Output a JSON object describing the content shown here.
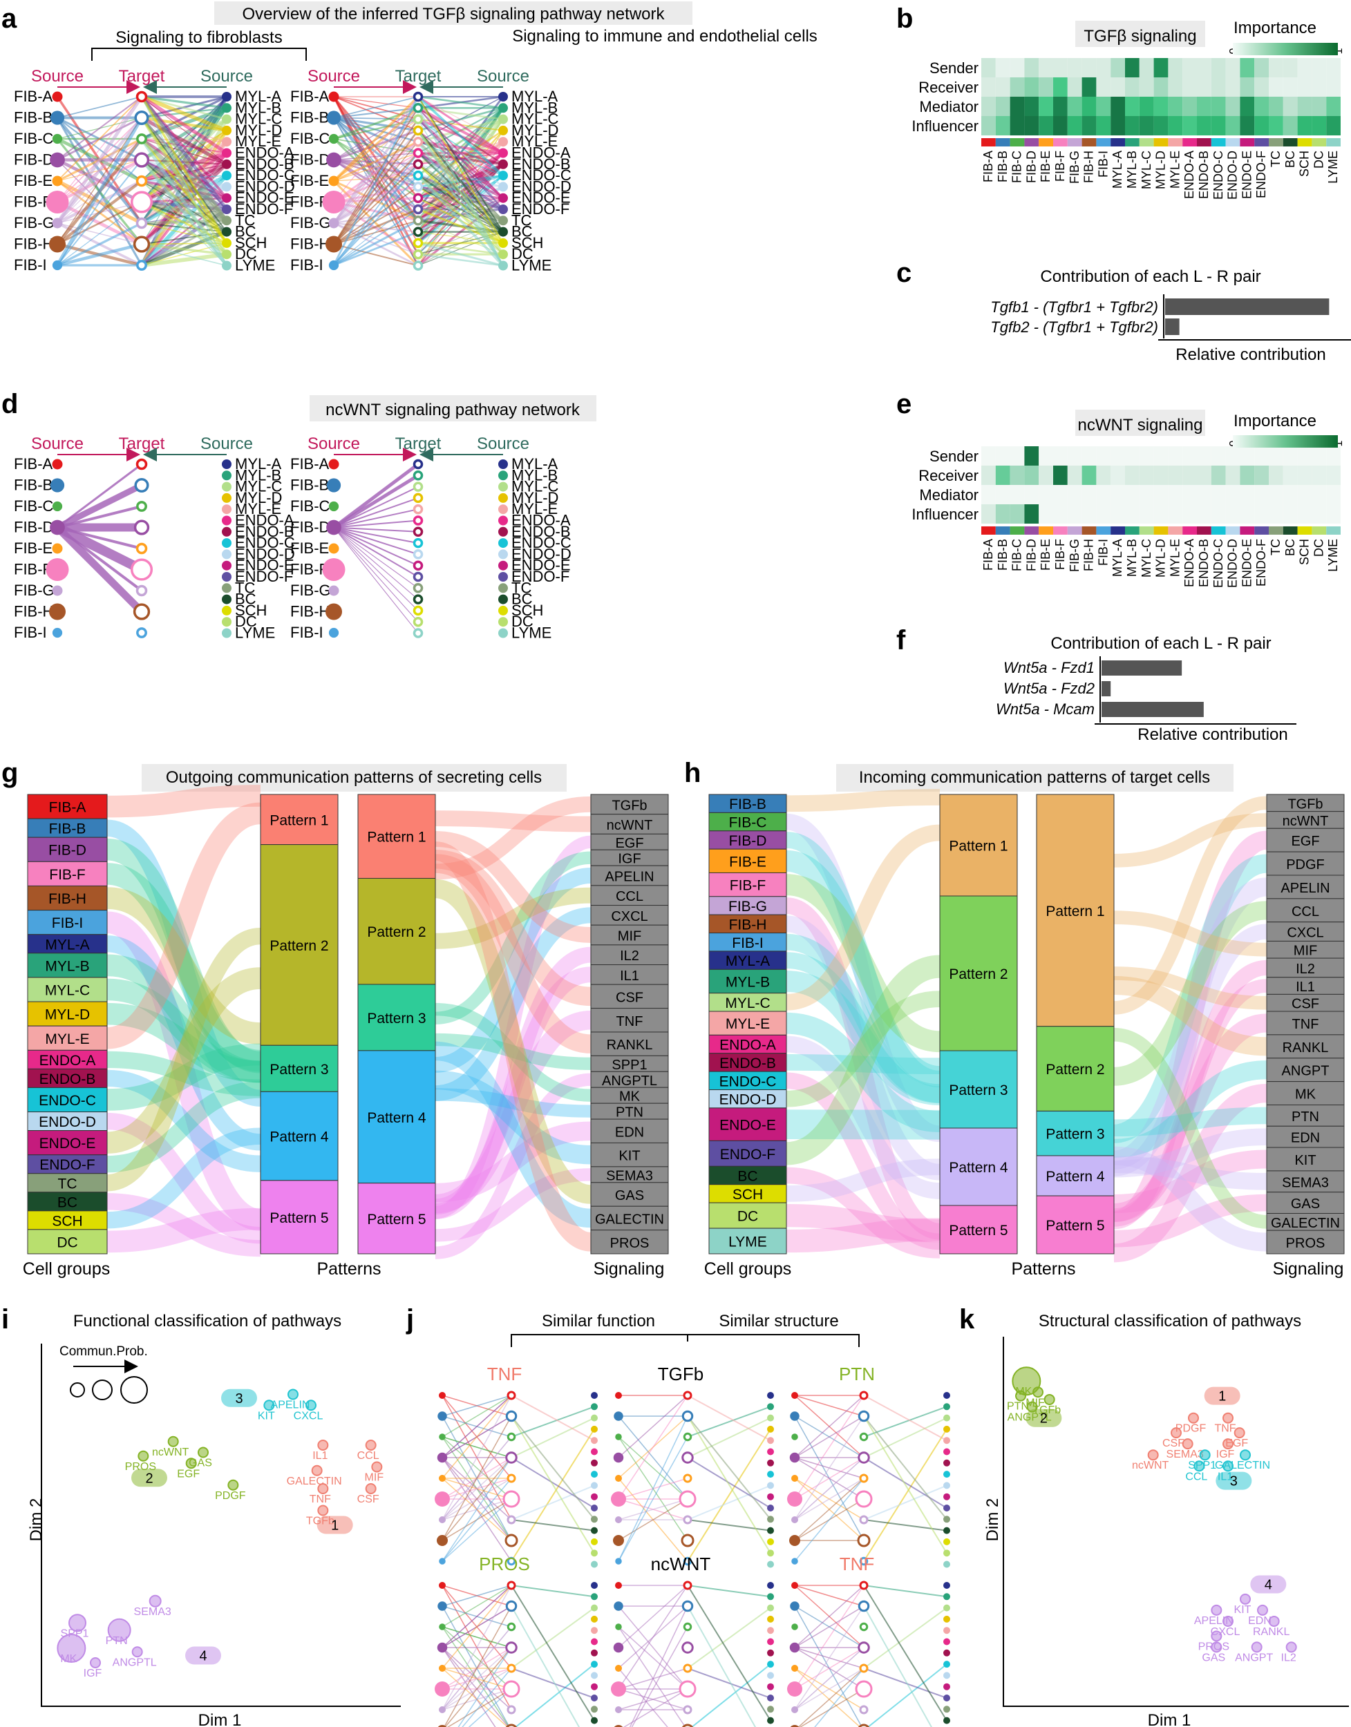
{
  "panels": {
    "a": {
      "letter": "a",
      "header": "Overview of the inferred TGFβ signaling pathway network",
      "left_title": "Signaling to fibroblasts",
      "right_title": "Signaling to immune and endothelial cells"
    },
    "b": {
      "letter": "b",
      "title": "TGFβ signaling",
      "legend": "Importance",
      "legend_min": "0",
      "legend_max": "1"
    },
    "c": {
      "letter": "c",
      "title": "Contribution of each L - R pair",
      "xlabel": "Relative contribution"
    },
    "d": {
      "letter": "d",
      "header": "ncWNT signaling pathway network"
    },
    "e": {
      "letter": "e",
      "title": "ncWNT signaling",
      "legend": "Importance",
      "legend_min": "0",
      "legend_max": "1"
    },
    "f": {
      "letter": "f",
      "title": "Contribution of each L - R pair",
      "xlabel": "Relative contribution"
    },
    "g": {
      "letter": "g",
      "header": "Outgoing communication patterns of secreting cells"
    },
    "h": {
      "letter": "h",
      "header": "Incoming communication patterns of target cells"
    },
    "i": {
      "letter": "i",
      "title": "Functional classification of pathways",
      "xlabel": "Dim 1",
      "ylabel": "Dim 2",
      "legend": "Commun.Prob."
    },
    "j": {
      "letter": "j",
      "similar_function": "Similar function",
      "similar_structure": "Similar structure",
      "titles": [
        "TNF",
        "TGFb",
        "PTN",
        "PROS",
        "ncWNT",
        "TNF"
      ]
    },
    "k": {
      "letter": "k",
      "title": "Structural classification of pathways",
      "xlabel": "Dim 1",
      "ylabel": "Dim 2"
    }
  },
  "hier": {
    "source": "Source",
    "target": "Target"
  },
  "sankey": {
    "cell_groups": "Cell groups",
    "patterns": "Patterns",
    "signaling": "Signaling"
  },
  "roles": [
    "Sender",
    "Receiver",
    "Mediator",
    "Influencer"
  ],
  "fibroblasts": [
    "FIB-A",
    "FIB-B",
    "FIB-C",
    "FIB-D",
    "FIB-E",
    "FIB-F",
    "FIB-G",
    "FIB-H",
    "FIB-I"
  ],
  "others": [
    "MYL-A",
    "MYL-B",
    "MYL-C",
    "MYL-D",
    "MYL-E",
    "ENDO-A",
    "ENDO-B",
    "ENDO-C",
    "ENDO-D",
    "ENDO-E",
    "ENDO-F",
    "TC",
    "BC",
    "SCH",
    "DC",
    "LYME"
  ],
  "cell_colors": {
    "FIB-A": "#e41a1c",
    "FIB-B": "#377eb8",
    "FIB-C": "#4daf4a",
    "FIB-D": "#984ea3",
    "FIB-E": "#ff9f1c",
    "FIB-F": "#f781bf",
    "FIB-G": "#c4a5d6",
    "FIB-H": "#a65628",
    "FIB-I": "#4ba3dd",
    "MYL-A": "#27318b",
    "MYL-B": "#29a37a",
    "MYL-C": "#b2df8a",
    "MYL-D": "#e6c200",
    "MYL-E": "#f4a6a6",
    "ENDO-A": "#e7298a",
    "ENDO-B": "#a1124f",
    "ENDO-C": "#17c3d6",
    "ENDO-D": "#b9d8ef",
    "ENDO-E": "#c51b7d",
    "ENDO-F": "#5e4fa2",
    "TC": "#88a07a",
    "BC": "#1b4d2c",
    "SCH": "#dddd00",
    "DC": "#b8df6e",
    "LYME": "#8dd3c7"
  },
  "fib_sizes": [
    1,
    1.35,
    0.95,
    1.45,
    1.0,
    2.2,
    1.0,
    1.6,
    0.95
  ],
  "heat_columns": [
    "FIB-A",
    "FIB-B",
    "FIB-C",
    "FIB-D",
    "FIB-E",
    "FIB-F",
    "FIB-G",
    "FIB-H",
    "FIB-I",
    "MYL-A",
    "MYL-B",
    "MYL-C",
    "MYL-D",
    "MYL-E",
    "ENDO-A",
    "ENDO-B",
    "ENDO-C",
    "ENDO-D",
    "ENDO-E",
    "ENDO-F",
    "TC",
    "BC",
    "SCH",
    "DC",
    "LYME"
  ],
  "heat_tgfb": [
    [
      0.15,
      0.05,
      0.05,
      0.2,
      0.1,
      0.1,
      0.1,
      0.1,
      0.1,
      0.25,
      0.9,
      0.15,
      0.85,
      0.15,
      0.1,
      0.1,
      0.15,
      0.1,
      0.5,
      0.25,
      0.1,
      0.1,
      0.05,
      0.05,
      0.05
    ],
    [
      0.1,
      0.1,
      0.3,
      0.4,
      0.3,
      0.6,
      0.15,
      0.9,
      0.1,
      0.1,
      0.2,
      0.15,
      0.3,
      0.15,
      0.1,
      0.1,
      0.15,
      0.1,
      0.3,
      0.15,
      0.05,
      0.05,
      0.05,
      0.05,
      0.05
    ],
    [
      0.2,
      0.3,
      0.95,
      0.9,
      0.6,
      0.9,
      0.5,
      0.7,
      0.5,
      0.95,
      0.6,
      0.7,
      0.6,
      0.5,
      0.4,
      0.5,
      0.5,
      0.3,
      0.85,
      0.5,
      0.4,
      0.2,
      0.3,
      0.3,
      0.5
    ],
    [
      0.3,
      0.5,
      0.95,
      0.95,
      0.8,
      0.95,
      0.7,
      0.85,
      0.7,
      0.95,
      0.8,
      0.85,
      0.8,
      0.7,
      0.6,
      0.7,
      0.7,
      0.5,
      0.9,
      0.7,
      0.6,
      0.4,
      0.7,
      0.7,
      0.8
    ]
  ],
  "heat_ncwnt": [
    [
      0,
      0,
      0,
      0.95,
      0,
      0,
      0,
      0,
      0,
      0,
      0,
      0,
      0,
      0,
      0,
      0,
      0,
      0,
      0,
      0,
      0,
      0,
      0,
      0,
      0
    ],
    [
      0.1,
      0.5,
      0.3,
      0.35,
      0.1,
      0.95,
      0.1,
      0.5,
      0.1,
      0.05,
      0.1,
      0.1,
      0.1,
      0.1,
      0.1,
      0.1,
      0.25,
      0.1,
      0.3,
      0.25,
      0.1,
      0.05,
      0.05,
      0.05,
      0.05
    ],
    [
      0,
      0,
      0,
      0,
      0,
      0,
      0,
      0,
      0,
      0,
      0,
      0,
      0,
      0,
      0,
      0,
      0,
      0,
      0,
      0,
      0,
      0,
      0,
      0,
      0
    ],
    [
      0.1,
      0.3,
      0.3,
      0.95,
      0,
      0,
      0,
      0,
      0,
      0,
      0,
      0,
      0,
      0,
      0,
      0,
      0,
      0,
      0,
      0,
      0,
      0,
      0,
      0,
      0
    ]
  ],
  "lr_tgfb": [
    {
      "label": "Tgfb1 - (Tgfbr1 + Tgfbr2)",
      "value": 0.92
    },
    {
      "label": "Tgfb2 - (Tgfbr1 + Tgfbr2)",
      "value": 0.08
    }
  ],
  "lr_ncwnt": [
    {
      "label": "Wnt5a - Fzd1",
      "value": 0.44
    },
    {
      "label": "Wnt5a - Fzd2",
      "value": 0.05
    },
    {
      "label": "Wnt5a - Mcam",
      "value": 0.56
    }
  ],
  "pattern_labels": [
    "Pattern 1",
    "Pattern 2",
    "Pattern 3",
    "Pattern 4",
    "Pattern 5"
  ],
  "out_cells": [
    "FIB-A",
    "FIB-B",
    "FIB-D",
    "FIB-F",
    "FIB-H",
    "FIB-I",
    "MYL-A",
    "MYL-B",
    "MYL-C",
    "MYL-D",
    "MYL-E",
    "ENDO-A",
    "ENDO-B",
    "ENDO-C",
    "ENDO-D",
    "ENDO-E",
    "ENDO-F",
    "TC",
    "BC",
    "SCH",
    "DC"
  ],
  "out_cell_weights": [
    1.3,
    1,
    1.3,
    1.3,
    1.3,
    1.3,
    1,
    1.3,
    1.3,
    1.3,
    1.3,
    1,
    1,
    1.3,
    1,
    1.3,
    1,
    1,
    1,
    1,
    1.3
  ],
  "out_patterns": [
    1.3,
    5.2,
    1.2,
    2.3,
    1.9
  ],
  "out_patterns_right": [
    1.9,
    2.4,
    1.5,
    3.0,
    1.6
  ],
  "out_pattern_colors": [
    "#fa8072",
    "#b5b62a",
    "#2ecc98",
    "#33b7f0",
    "#ee82ee"
  ],
  "in_cells": [
    "FIB-B",
    "FIB-C",
    "FIB-D",
    "FIB-E",
    "FIB-F",
    "FIB-G",
    "FIB-H",
    "FIB-I",
    "MYL-A",
    "MYL-B",
    "MYL-C",
    "MYL-E",
    "ENDO-A",
    "ENDO-B",
    "ENDO-C",
    "ENDO-D",
    "ENDO-E",
    "ENDO-F",
    "BC",
    "SCH",
    "DC",
    "LYME"
  ],
  "in_cell_weights": [
    1,
    1,
    1,
    1.3,
    1.3,
    1,
    1,
    1,
    1,
    1.3,
    1,
    1.3,
    1,
    1,
    1,
    1,
    1.8,
    1.4,
    1,
    1,
    1.4,
    1.4
  ],
  "in_patterns": [
    2.1,
    3.2,
    1.6,
    1.6,
    1.0
  ],
  "in_patterns_right": [
    5.2,
    1.9,
    1.0,
    0.9,
    1.3
  ],
  "in_pattern_colors": [
    "#eab266",
    "#7fd15b",
    "#45d3d6",
    "#c8b7f7",
    "#f77ed0"
  ],
  "signals_out": [
    "TGFb",
    "ncWNT",
    "EGF",
    "IGF",
    "APELIN",
    "CCL",
    "CXCL",
    "MIF",
    "IL2",
    "IL1",
    "CSF",
    "TNF",
    "RANKL",
    "SPP1",
    "ANGPTL",
    "MK",
    "PTN",
    "EDN",
    "KIT",
    "SEMA3",
    "GAS",
    "GALECTIN",
    "PROS"
  ],
  "signals_out_weights": [
    1,
    1,
    0.8,
    0.8,
    1,
    1,
    1,
    1,
    1,
    1,
    1.2,
    1.2,
    1.2,
    0.8,
    0.8,
    0.8,
    0.8,
    1.2,
    1.2,
    0.8,
    1.2,
    1.2,
    1.2
  ],
  "signals_in": [
    "TGFb",
    "ncWNT",
    "EGF",
    "PDGF",
    "APELIN",
    "CCL",
    "CXCL",
    "MIF",
    "IL2",
    "IL1",
    "CSF",
    "TNF",
    "RANKL",
    "ANGPT",
    "MK",
    "PTN",
    "EDN",
    "KIT",
    "SEMA3",
    "GAS",
    "GALECTIN",
    "PROS"
  ],
  "signals_in_weights": [
    0.8,
    0.8,
    1.1,
    1.1,
    1.1,
    1.1,
    0.9,
    0.8,
    0.9,
    0.8,
    0.8,
    1.1,
    1.1,
    1.1,
    1.1,
    1.0,
    1.0,
    1.1,
    1.0,
    1.0,
    0.8,
    1.1
  ],
  "scatter_i": [
    {
      "label": "APELIN",
      "g": 3,
      "x": 4.2,
      "y": 8.6
    },
    {
      "label": "KIT",
      "g": 3,
      "x": 3.8,
      "y": 8.3
    },
    {
      "label": "CXCL",
      "g": 3,
      "x": 4.5,
      "y": 8.3
    },
    {
      "label": "ncWNT",
      "g": 2,
      "x": 2.2,
      "y": 7.3
    },
    {
      "label": "PROS",
      "g": 2,
      "x": 1.7,
      "y": 6.9
    },
    {
      "label": "GAS",
      "g": 2,
      "x": 2.7,
      "y": 7.0
    },
    {
      "label": "EGF",
      "g": 2,
      "x": 2.5,
      "y": 6.7
    },
    {
      "label": "PDGF",
      "g": 2,
      "x": 3.2,
      "y": 6.1
    },
    {
      "label": "IL1",
      "g": 1,
      "x": 4.7,
      "y": 7.2
    },
    {
      "label": "CCL",
      "g": 1,
      "x": 5.5,
      "y": 7.2
    },
    {
      "label": "GALECTIN",
      "g": 1,
      "x": 4.6,
      "y": 6.5
    },
    {
      "label": "MIF",
      "g": 1,
      "x": 5.6,
      "y": 6.6
    },
    {
      "label": "TNF",
      "g": 1,
      "x": 4.7,
      "y": 6.0
    },
    {
      "label": "CSF",
      "g": 1,
      "x": 5.5,
      "y": 6.0
    },
    {
      "label": "TGFb",
      "g": 1,
      "x": 4.7,
      "y": 5.4
    },
    {
      "label": "SEMA3",
      "g": 4,
      "x": 1.9,
      "y": 2.9
    },
    {
      "label": "SPP1",
      "g": 4,
      "x": 0.6,
      "y": 2.3
    },
    {
      "label": "PTN",
      "g": 4,
      "x": 1.3,
      "y": 2.1
    },
    {
      "label": "MK",
      "g": 4,
      "x": 0.5,
      "y": 1.6
    },
    {
      "label": "ANGPTL",
      "g": 4,
      "x": 1.6,
      "y": 1.5
    },
    {
      "label": "IGF",
      "g": 4,
      "x": 0.9,
      "y": 1.2
    }
  ],
  "scatter_i_groups": [
    {
      "g": 1,
      "label": "1",
      "x": 4.9,
      "y": 5.0
    },
    {
      "g": 2,
      "label": "2",
      "x": 1.8,
      "y": 6.3
    },
    {
      "g": 3,
      "label": "3",
      "x": 3.3,
      "y": 8.5
    },
    {
      "g": 4,
      "label": "4",
      "x": 2.7,
      "y": 1.4
    }
  ],
  "scatter_k": [
    {
      "label": "MK",
      "g": 2,
      "x": 0.4,
      "y": 8.8
    },
    {
      "label": "MIF",
      "g": 2,
      "x": 0.6,
      "y": 8.5
    },
    {
      "label": "PTN",
      "g": 2,
      "x": 0.3,
      "y": 8.4
    },
    {
      "label": "TGFb",
      "g": 2,
      "x": 0.8,
      "y": 8.3
    },
    {
      "label": "ANGPTL",
      "g": 2,
      "x": 0.5,
      "y": 8.1
    },
    {
      "label": "PDGF",
      "g": 1,
      "x": 3.3,
      "y": 7.8
    },
    {
      "label": "TNF",
      "g": 1,
      "x": 3.9,
      "y": 7.8
    },
    {
      "label": "CSF",
      "g": 1,
      "x": 3.0,
      "y": 7.4
    },
    {
      "label": "EGF",
      "g": 1,
      "x": 4.1,
      "y": 7.4
    },
    {
      "label": "SEMA3",
      "g": 1,
      "x": 3.2,
      "y": 7.1
    },
    {
      "label": "IGF",
      "g": 1,
      "x": 3.9,
      "y": 7.1
    },
    {
      "label": "ncWNT",
      "g": 1,
      "x": 2.6,
      "y": 6.8
    },
    {
      "label": "SPP1",
      "g": 3,
      "x": 3.5,
      "y": 6.8
    },
    {
      "label": "GALECTIN",
      "g": 3,
      "x": 4.2,
      "y": 6.8
    },
    {
      "label": "CCL",
      "g": 3,
      "x": 3.4,
      "y": 6.5
    },
    {
      "label": "IL1",
      "g": 3,
      "x": 3.9,
      "y": 6.5
    },
    {
      "label": "KIT",
      "g": 4,
      "x": 4.2,
      "y": 2.9
    },
    {
      "label": "APELIN",
      "g": 4,
      "x": 3.7,
      "y": 2.6
    },
    {
      "label": "EDN",
      "g": 4,
      "x": 4.5,
      "y": 2.6
    },
    {
      "label": "CXCL",
      "g": 4,
      "x": 3.9,
      "y": 2.3
    },
    {
      "label": "RANKL",
      "g": 4,
      "x": 4.7,
      "y": 2.3
    },
    {
      "label": "PROS",
      "g": 4,
      "x": 3.7,
      "y": 1.9
    },
    {
      "label": "GAS",
      "g": 4,
      "x": 3.7,
      "y": 1.6
    },
    {
      "label": "ANGPT",
      "g": 4,
      "x": 4.4,
      "y": 1.6
    },
    {
      "label": "IL2",
      "g": 4,
      "x": 5.0,
      "y": 1.6
    }
  ],
  "scatter_k_groups": [
    {
      "g": 1,
      "label": "1",
      "x": 3.8,
      "y": 8.4
    },
    {
      "g": 2,
      "label": "2",
      "x": 0.7,
      "y": 7.8
    },
    {
      "g": 3,
      "label": "3",
      "x": 4.0,
      "y": 6.1
    },
    {
      "g": 4,
      "label": "4",
      "x": 4.6,
      "y": 3.3
    }
  ],
  "group_colors": {
    "1": "#f08072",
    "2": "#84b325",
    "3": "#22c4d0",
    "4": "#c08be6"
  }
}
